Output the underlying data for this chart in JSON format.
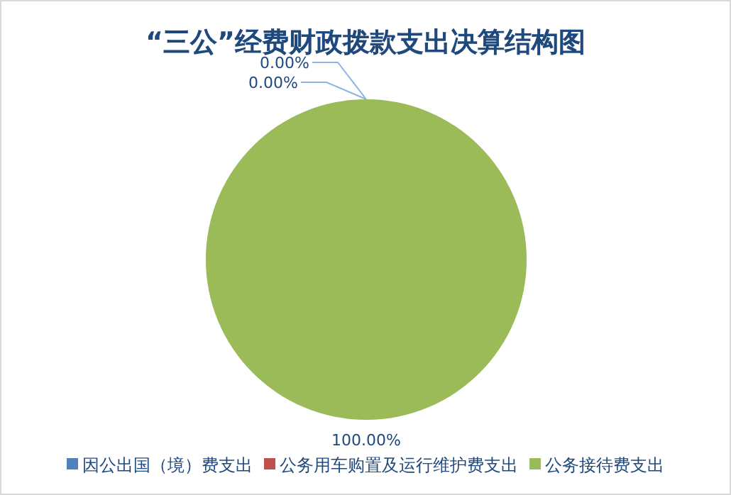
{
  "chart_data": {
    "type": "pie",
    "title": "“三公”经费财政拨款支出决算结构图",
    "categories": [
      "因公出国（境）费支出",
      "公务用车购置及运行维护费支出",
      "公务接待费支出"
    ],
    "values": [
      0,
      0,
      100
    ],
    "colors": [
      "#4f81bd",
      "#c0504d",
      "#9bbb59"
    ],
    "value_labels": [
      "0.00%",
      "0.00%",
      "100.00%"
    ],
    "legend": "bottom"
  }
}
